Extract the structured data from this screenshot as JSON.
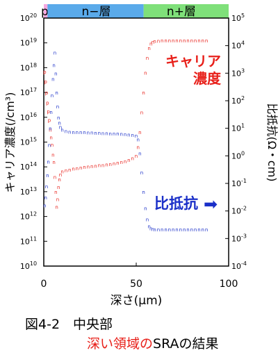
{
  "chart_data": {
    "type": "scatter",
    "title": "",
    "xlabel": "深さ(μm)",
    "y_left_label": "キャリア濃度(/cm³)",
    "y_right_label": "比抵抗(Ω・cm)",
    "xlim": [
      0,
      100
    ],
    "x_ticks": [
      0,
      50,
      100
    ],
    "y_left_range_exp": [
      10,
      20
    ],
    "y_right_range_exp": [
      -4,
      5
    ],
    "layers": [
      {
        "label": "p層",
        "x_start": 0,
        "x_end": 2,
        "color": "#f7a8e0"
      },
      {
        "label": "n−層",
        "x_start": 2,
        "x_end": 54,
        "color": "#5aaaea"
      },
      {
        "label": "n+層",
        "x_start": 54,
        "x_end": 100,
        "color": "#7fe07a"
      }
    ],
    "annotations": {
      "carrier": [
        "キャリア",
        "濃度"
      ],
      "resistivity": "比抵抗",
      "resistivity_arrow": "➡"
    },
    "series": [
      {
        "name": "キャリア濃度",
        "axis": "left",
        "color": "#e8201a",
        "point_labels": [
          "p",
          "n"
        ],
        "x": [
          0.5,
          1,
          1.5,
          2,
          2.5,
          3,
          3.5,
          4,
          4.5,
          5,
          5.5,
          6,
          6.5,
          7,
          7.5,
          8,
          8.5,
          9,
          10,
          12,
          14,
          16,
          18,
          20,
          22,
          24,
          26,
          28,
          30,
          32,
          34,
          36,
          38,
          40,
          42,
          44,
          46,
          48,
          50,
          51,
          52,
          53,
          54,
          55,
          56,
          57,
          58,
          59,
          60,
          62,
          64,
          66,
          68,
          70,
          72,
          74,
          76,
          78,
          80,
          82,
          84,
          86,
          88
        ],
        "log10_values": [
          17.85,
          17.45,
          17.0,
          16.6,
          16.25,
          15.9,
          15.5,
          15.2,
          14.9,
          14.5,
          14.2,
          13.6,
          13.0,
          12.4,
          12.7,
          13.2,
          13.5,
          13.7,
          13.82,
          13.87,
          13.9,
          13.93,
          13.95,
          13.98,
          14.0,
          14.02,
          14.03,
          14.05,
          14.07,
          14.08,
          14.1,
          14.12,
          14.15,
          14.18,
          14.2,
          14.23,
          14.28,
          14.35,
          14.45,
          14.8,
          15.4,
          16.2,
          17.0,
          17.8,
          18.4,
          18.8,
          18.98,
          19.05,
          19.08,
          19.09,
          19.1,
          19.1,
          19.11,
          19.11,
          19.1,
          19.1,
          19.11,
          19.1,
          19.1,
          19.11,
          19.1,
          19.1,
          19.1
        ]
      },
      {
        "name": "比抵抗",
        "axis": "right",
        "color": "#1a2fc8",
        "point_label": "n",
        "x": [
          0.5,
          1,
          1.5,
          2,
          2.5,
          3,
          3.5,
          4,
          4.5,
          5,
          5.5,
          6,
          6.5,
          7,
          7.5,
          8,
          8.5,
          9,
          10,
          12,
          14,
          16,
          18,
          20,
          22,
          24,
          26,
          28,
          30,
          32,
          34,
          36,
          38,
          40,
          42,
          44,
          46,
          48,
          50,
          51,
          52,
          53,
          54,
          55,
          56,
          57,
          58,
          59,
          60,
          62,
          64,
          66,
          68,
          70,
          72,
          74,
          76,
          78,
          80,
          82,
          84,
          86,
          88
        ],
        "log10_values": [
          -1.8,
          -1.5,
          -1.1,
          -0.7,
          -0.2,
          0.4,
          1.0,
          1.6,
          2.2,
          2.8,
          3.3,
          3.75,
          3.0,
          2.3,
          1.8,
          1.4,
          1.2,
          1.05,
          0.95,
          0.9,
          0.88,
          0.87,
          0.87,
          0.86,
          0.86,
          0.85,
          0.85,
          0.84,
          0.84,
          0.83,
          0.83,
          0.82,
          0.82,
          0.81,
          0.8,
          0.79,
          0.78,
          0.76,
          0.74,
          0.6,
          0.1,
          -0.6,
          -1.3,
          -1.9,
          -2.3,
          -2.55,
          -2.62,
          -2.65,
          -2.66,
          -2.66,
          -2.66,
          -2.66,
          -2.66,
          -2.66,
          -2.66,
          -2.66,
          -2.66,
          -2.66,
          -2.66,
          -2.66,
          -2.66,
          -2.66,
          -2.66
        ]
      }
    ]
  },
  "caption": {
    "line1": "図4-2　中央部",
    "line2_red": "深い領域の",
    "line2_black": "SRAの結果"
  }
}
